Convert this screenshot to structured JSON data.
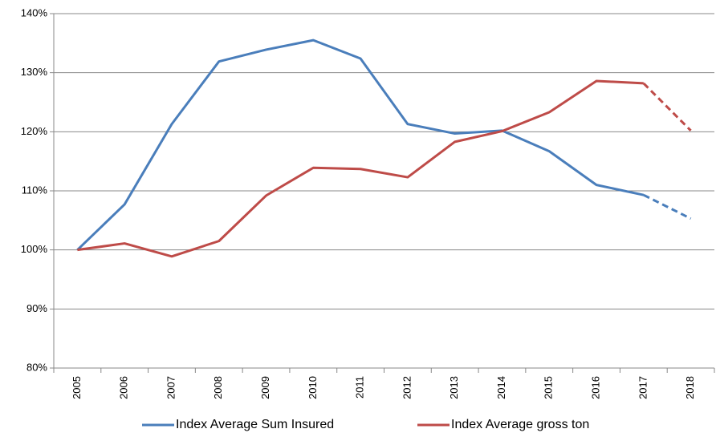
{
  "chart_data": {
    "type": "line",
    "categories": [
      "2005",
      "2006",
      "2007",
      "2008",
      "2009",
      "2010",
      "2011",
      "2012",
      "2013",
      "2014",
      "2015",
      "2016",
      "2017",
      "2018"
    ],
    "series": [
      {
        "name": "Index Average Sum Insured",
        "color": "#4a7ebb",
        "values": [
          100,
          107.7,
          121.3,
          131.9,
          133.9,
          135.5,
          132.4,
          121.3,
          119.7,
          120.2,
          116.7,
          111.0,
          109.3,
          105.3
        ]
      },
      {
        "name": "Index Average gross ton",
        "color": "#be4b48",
        "values": [
          100,
          101.1,
          98.9,
          101.5,
          109.2,
          113.9,
          113.7,
          112.3,
          118.3,
          120.1,
          123.3,
          128.6,
          128.2,
          120.2
        ]
      }
    ],
    "dashed_from": 12,
    "ylim": [
      80,
      140
    ],
    "yticks": [
      {
        "value": 80,
        "label": "80%"
      },
      {
        "value": 90,
        "label": "90%"
      },
      {
        "value": 100,
        "label": "100%"
      },
      {
        "value": 110,
        "label": "110%"
      },
      {
        "value": 120,
        "label": "120%"
      },
      {
        "value": 130,
        "label": "130%"
      },
      {
        "value": 140,
        "label": "140%"
      }
    ],
    "grid": true,
    "legend": "bottom"
  }
}
